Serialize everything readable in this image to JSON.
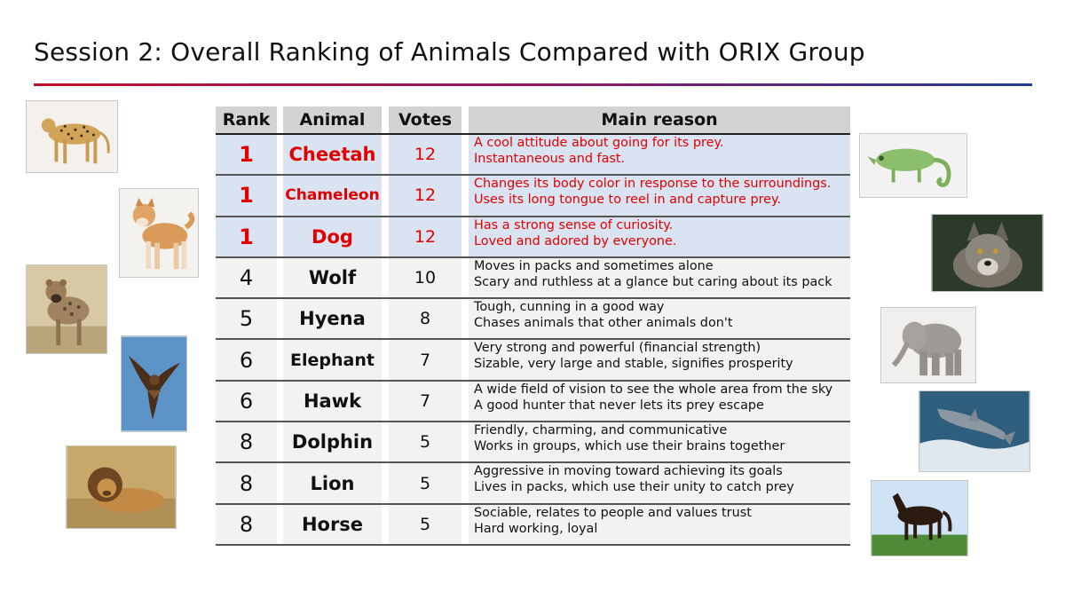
{
  "title": "Session 2: Overall Ranking of Animals Compared with ORIX Group",
  "table": {
    "headers": {
      "rank": "Rank",
      "animal": "Animal",
      "votes": "Votes",
      "reason": "Main reason"
    },
    "rows": [
      {
        "rank": "1",
        "animal": "Cheetah",
        "votes": "12",
        "reason1": "A cool attitude about going for its prey.",
        "reason2": "Instantaneous and fast."
      },
      {
        "rank": "1",
        "animal": "Chameleon",
        "votes": "12",
        "reason1": "Changes its body color in response to the surroundings.",
        "reason2": "Uses its long tongue to reel in and capture prey."
      },
      {
        "rank": "1",
        "animal": "Dog",
        "votes": "12",
        "reason1": "Has a strong sense of curiosity.",
        "reason2": "Loved and adored by everyone."
      },
      {
        "rank": "4",
        "animal": "Wolf",
        "votes": "10",
        "reason1": "Moves in packs and sometimes alone",
        "reason2": "Scary and ruthless at a glance but caring about its pack"
      },
      {
        "rank": "5",
        "animal": "Hyena",
        "votes": "8",
        "reason1": "Tough, cunning in a good way",
        "reason2": "Chases animals that other animals don't"
      },
      {
        "rank": "6",
        "animal": "Elephant",
        "votes": "7",
        "reason1": "Very strong and powerful (financial strength)",
        "reason2": "Sizable, very large and stable, signifies prosperity"
      },
      {
        "rank": "6",
        "animal": "Hawk",
        "votes": "7",
        "reason1": "A wide field of vision to see the whole area from the sky",
        "reason2": "A good hunter that never lets its prey escape"
      },
      {
        "rank": "8",
        "animal": "Dolphin",
        "votes": "5",
        "reason1": "Friendly, charming, and communicative",
        "reason2": "Works in groups, which use their brains together"
      },
      {
        "rank": "8",
        "animal": "Lion",
        "votes": "5",
        "reason1": "Aggressive in moving toward achieving its goals",
        "reason2": "Lives in packs, which use their unity to catch prey"
      },
      {
        "rank": "8",
        "animal": "Horse",
        "votes": "5",
        "reason1": "Sociable, relates to people and values trust",
        "reason2": "Hard working, loyal"
      }
    ]
  },
  "colors": {
    "highlight_text": "#e00000",
    "highlight_bg": "#dae3f1",
    "row_bg": "#f2f2f2",
    "header_bg": "#d3d3d3"
  },
  "photos": [
    "cheetah-photo",
    "dog-photo",
    "hyena-photo",
    "hawk-photo",
    "lion-photo",
    "chameleon-photo",
    "wolf-photo",
    "elephant-photo",
    "dolphin-photo",
    "horse-photo"
  ]
}
